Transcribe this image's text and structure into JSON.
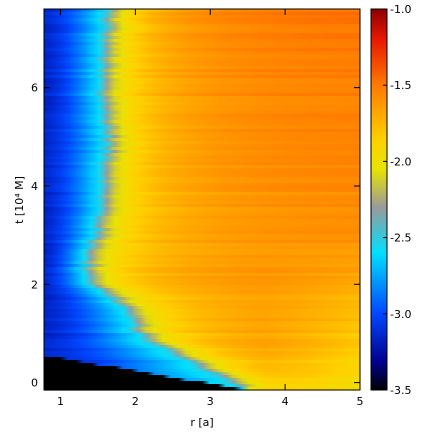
{
  "chart_data": {
    "type": "heatmap",
    "xlabel": "r [a]",
    "ylabel": "t [10⁴ M]",
    "xlim": [
      0.78,
      5.0
    ],
    "ylim": [
      -0.15,
      7.6
    ],
    "x_ticks": [
      1,
      2,
      3,
      4,
      5
    ],
    "y_ticks": [
      0,
      2,
      4,
      6
    ],
    "colorbar": {
      "range": [
        -3.5,
        -1.0
      ],
      "ticks": [
        "-1.0",
        "-1.5",
        "-2.0",
        "-2.5",
        "-3.0",
        "-3.5"
      ],
      "tick_values": [
        -1.0,
        -1.5,
        -2.0,
        -2.5,
        -3.0,
        -3.5
      ],
      "stops": [
        {
          "v": -3.5,
          "color": "#000000"
        },
        {
          "v": -3.32,
          "color": "#00008c"
        },
        {
          "v": -3.0,
          "color": "#0046ff"
        },
        {
          "v": -2.6,
          "color": "#00e0ff"
        },
        {
          "v": -2.3,
          "color": "#9a9a9a"
        },
        {
          "v": -2.05,
          "color": "#e8e400"
        },
        {
          "v": -1.85,
          "color": "#ffd000"
        },
        {
          "v": -1.5,
          "color": "#ff7a00"
        },
        {
          "v": -1.2,
          "color": "#e81800"
        },
        {
          "v": -1.0,
          "color": "#8c0000"
        }
      ]
    },
    "inner_edge_profile": [
      {
        "t": -0.15,
        "r": 3.5
      },
      {
        "t": 0.5,
        "r": 1.0
      },
      {
        "t": 0.55,
        "r": 0.78
      }
    ],
    "transition_profile": [
      {
        "t": 0.0,
        "r": 3.3
      },
      {
        "t": 0.5,
        "r": 2.6
      },
      {
        "t": 1.0,
        "r": 2.0
      },
      {
        "t": 1.5,
        "r": 1.85
      },
      {
        "t": 2.0,
        "r": 1.4
      },
      {
        "t": 2.5,
        "r": 1.3
      },
      {
        "t": 3.0,
        "r": 1.45
      },
      {
        "t": 4.0,
        "r": 1.55
      },
      {
        "t": 5.0,
        "r": 1.6
      },
      {
        "t": 6.0,
        "r": 1.5
      },
      {
        "t": 7.0,
        "r": 1.55
      },
      {
        "t": 7.6,
        "r": 1.6
      }
    ]
  }
}
